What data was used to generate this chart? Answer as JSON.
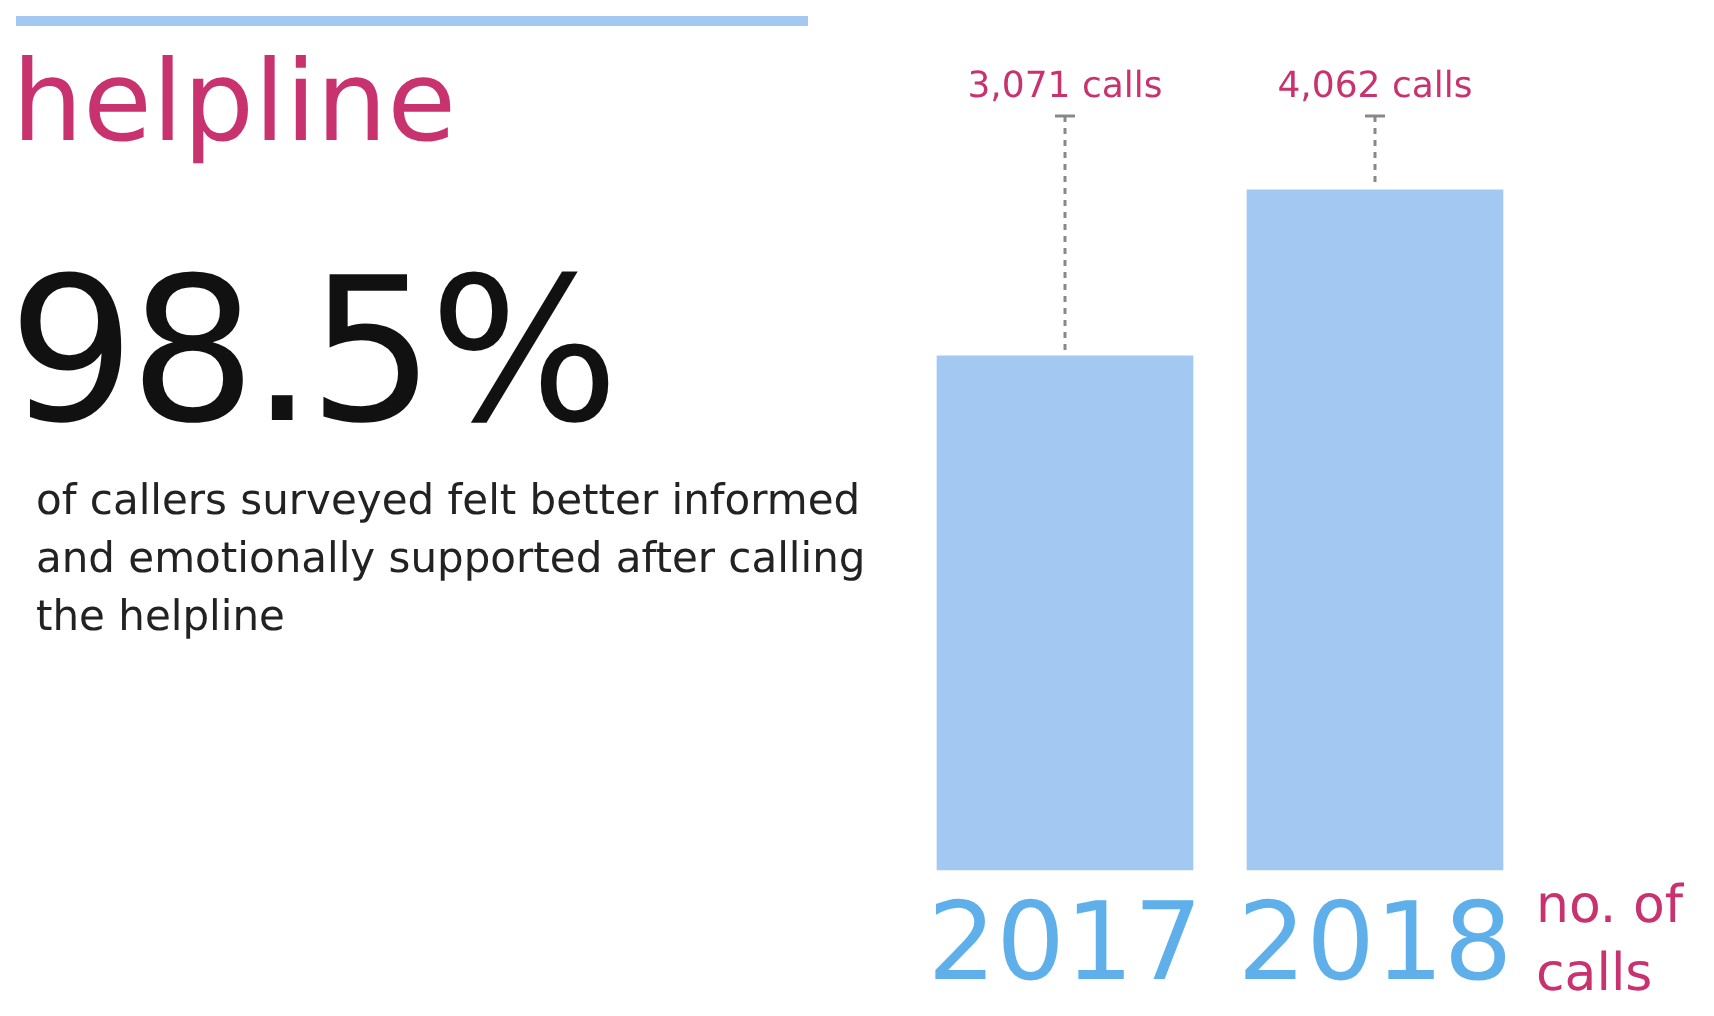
{
  "chart_data": {
    "type": "bar",
    "title": "helpline",
    "annotations": [
      "98.5%",
      "of callers surveyed felt better informed and emotionally supported after calling the helpline"
    ],
    "categories": [
      "2017",
      "2018"
    ],
    "values": [
      3071,
      4062
    ],
    "value_labels": [
      "3,071 calls",
      "4,062 calls"
    ],
    "color": "#a3c9f2",
    "xlabel": "no. of calls"
  }
}
